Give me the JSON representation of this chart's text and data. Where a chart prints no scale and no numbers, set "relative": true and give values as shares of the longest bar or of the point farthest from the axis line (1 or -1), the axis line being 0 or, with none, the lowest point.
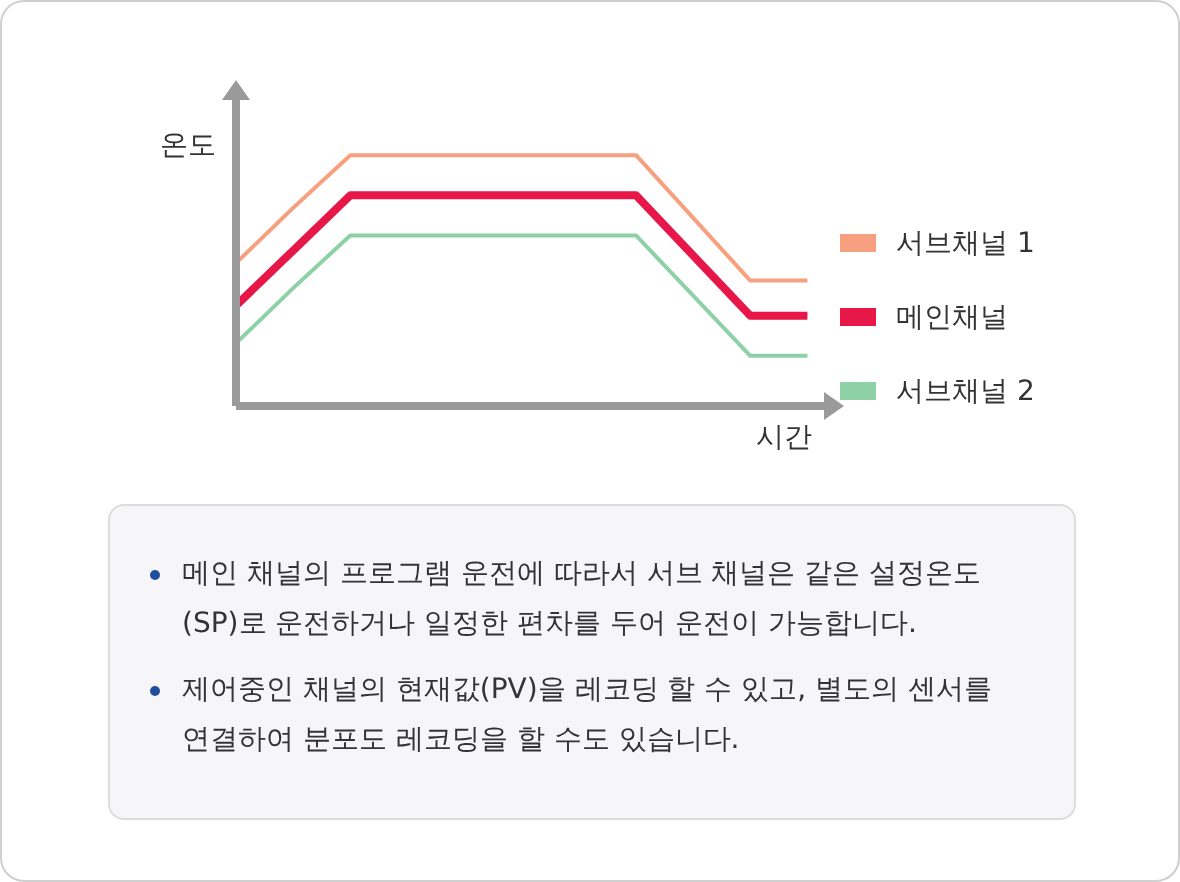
{
  "chart_data": {
    "type": "line",
    "relative": true,
    "xlabel": "시간",
    "ylabel": "온도",
    "legend": "right",
    "categories": [
      null,
      null,
      null,
      null,
      null,
      null,
      null,
      null,
      null,
      null,
      null
    ],
    "series": [
      {
        "name": "서브채널 1",
        "color": "#f7a07f",
        "values": [
          0.57,
          0.79,
          1,
          1,
          1,
          1,
          1,
          1,
          0.75,
          0.5,
          0.5
        ]
      },
      {
        "name": "메인채널",
        "color": "#e8174a",
        "values": [
          0.4,
          0.62,
          0.84,
          0.84,
          0.84,
          0.84,
          0.84,
          0.84,
          0.6,
          0.36,
          0.36
        ]
      },
      {
        "name": "서브채널 2",
        "color": "#8fd1a6",
        "values": [
          0.25,
          0.47,
          0.68,
          0.68,
          0.68,
          0.68,
          0.68,
          0.68,
          0.44,
          0.2,
          0.2
        ]
      }
    ],
    "annotations": [
      "메인 채널의 프로그램 운전에 따라서 서브 채널은 같은 설정온도 (SP)로 운전하거나 일정한 편차를 두어 운전이 가능합니다.",
      "제어중인 채널의 현재값(PV)을 레코딩 할 수 있고, 별도의 센서를 연결하여 분포도 레코딩을 할 수도 있습니다."
    ]
  }
}
